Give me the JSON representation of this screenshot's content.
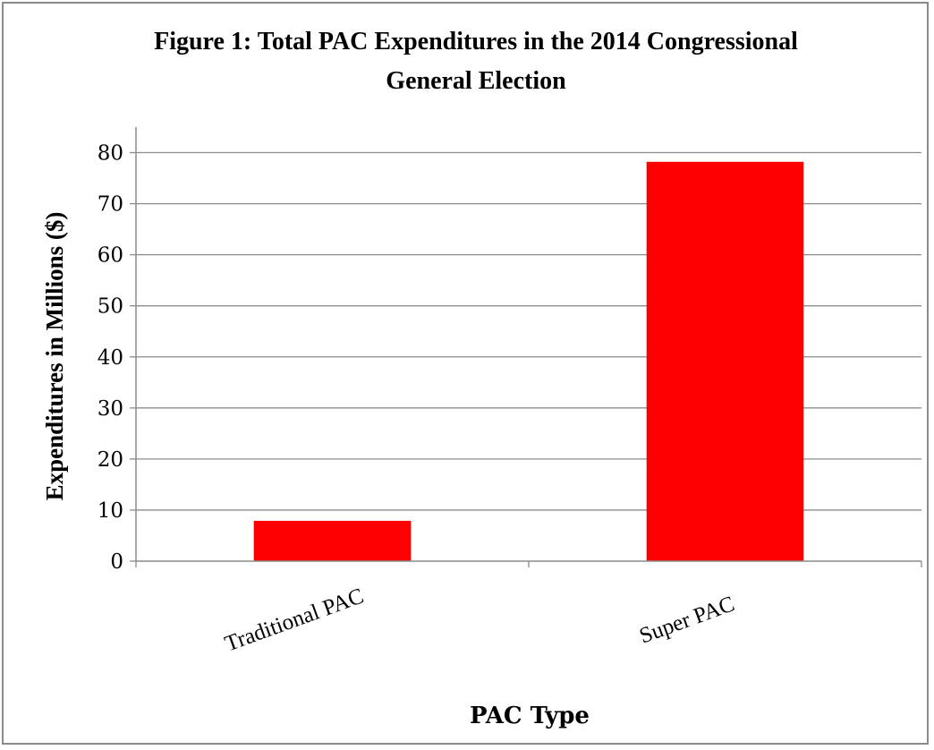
{
  "chart_data": {
    "type": "bar",
    "title_lines": [
      "Figure 1: Total PAC Expenditures in the 2014 Congressional",
      "General Election"
    ],
    "xlabel": "PAC Type",
    "ylabel": "Expenditures in Millions ($)",
    "categories": [
      "Traditional PAC",
      "Super PAC"
    ],
    "values": [
      7.9,
      78.2
    ],
    "ylim": [
      0,
      85
    ],
    "yticks": [
      0,
      10,
      20,
      30,
      40,
      50,
      60,
      70,
      80
    ],
    "grid": true,
    "bar_color": "#ff0000",
    "legend": "none"
  }
}
